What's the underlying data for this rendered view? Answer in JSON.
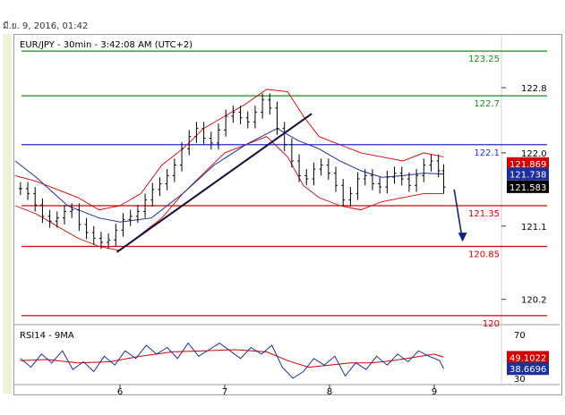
{
  "header": {
    "timestamp": "มี.ย. 9, 2016, 01:42"
  },
  "chart_data": [
    {
      "type": "line",
      "title": "EUR/JPY - 30min - 3:42:08 AM (UTC+2)",
      "instrument": "EUR/JPY",
      "y_axis": {
        "ticks": [
          122.8,
          122.0,
          121.1,
          120.2
        ],
        "tick_labels": [
          "122.8",
          "122.0",
          "121.1",
          "120.2"
        ],
        "range": [
          119.9,
          123.35
        ],
        "position": "right"
      },
      "x_axis": {
        "ticks": [
          6,
          7,
          8,
          9
        ],
        "tick_labels": [
          "6",
          "7",
          "8",
          "9"
        ]
      },
      "price_markers": [
        {
          "value": 121.869,
          "label": "121.869",
          "color": "#d40000"
        },
        {
          "value": 121.738,
          "label": "121.738",
          "color": "#1c2f9c"
        },
        {
          "value": 121.583,
          "label": "121.583",
          "color": "#000000"
        }
      ],
      "horizontal_levels": [
        {
          "value": 123.25,
          "label": "123.25",
          "color": "#1f8a1f"
        },
        {
          "value": 122.7,
          "label": "122.7",
          "color": "#1f8a1f"
        },
        {
          "value": 122.1,
          "label": "122.1",
          "color": "#1c2fcc"
        },
        {
          "value": 121.35,
          "label": "121.35",
          "color": "#d40000"
        },
        {
          "value": 120.85,
          "label": "120.85",
          "color": "#d40000"
        },
        {
          "value": 120.0,
          "label": "120",
          "color": "#d40000"
        }
      ],
      "trendline": {
        "x": [
          5.97,
          7.83
        ],
        "y": [
          120.78,
          122.48
        ],
        "color": "#10103a"
      },
      "forecast_arrow": {
        "x": [
          9.19,
          9.27
        ],
        "y": [
          121.55,
          120.92
        ],
        "color": "#10237a"
      },
      "price_series": {
        "x": [
          5.05,
          5.12,
          5.19,
          5.26,
          5.33,
          5.4,
          5.47,
          5.54,
          5.61,
          5.68,
          5.75,
          5.82,
          5.89,
          5.96,
          6.03,
          6.1,
          6.17,
          6.24,
          6.31,
          6.38,
          6.45,
          6.52,
          6.59,
          6.66,
          6.73,
          6.8,
          6.87,
          6.94,
          7.01,
          7.08,
          7.15,
          7.22,
          7.29,
          7.36,
          7.43,
          7.5,
          7.57,
          7.64,
          7.71,
          7.78,
          7.85,
          7.92,
          7.99,
          8.06,
          8.13,
          8.2,
          8.27,
          8.34,
          8.41,
          8.48,
          8.55,
          8.62,
          8.69,
          8.76,
          8.83,
          8.9,
          8.97,
          9.04,
          9.09
        ],
        "y": [
          121.56,
          121.5,
          121.36,
          121.22,
          121.16,
          121.2,
          121.28,
          121.3,
          121.12,
          121.02,
          120.95,
          120.9,
          120.93,
          121.05,
          121.18,
          121.22,
          121.28,
          121.42,
          121.55,
          121.62,
          121.72,
          121.85,
          122.05,
          122.2,
          122.3,
          122.18,
          122.12,
          122.28,
          122.45,
          122.5,
          122.43,
          122.38,
          122.5,
          122.65,
          122.55,
          122.3,
          122.1,
          121.9,
          121.72,
          121.68,
          121.8,
          121.85,
          121.75,
          121.6,
          121.42,
          121.5,
          121.68,
          121.72,
          121.62,
          121.58,
          121.7,
          121.75,
          121.68,
          121.6,
          121.72,
          121.85,
          121.9,
          121.78,
          121.58
        ],
        "color": "#000000"
      },
      "ma_series": {
        "x": [
          5.0,
          5.2,
          5.5,
          5.8,
          6.0,
          6.3,
          6.6,
          6.9,
          7.2,
          7.5,
          7.7,
          7.9,
          8.1,
          8.3,
          8.5,
          8.7,
          8.9,
          9.09
        ],
        "y": [
          121.9,
          121.7,
          121.35,
          121.2,
          121.15,
          121.2,
          121.5,
          121.85,
          122.1,
          122.3,
          122.15,
          122.05,
          121.9,
          121.78,
          121.7,
          121.72,
          121.75,
          121.74
        ],
        "color": "#1c2f9c"
      },
      "bollinger_upper": {
        "x": [
          5.0,
          5.2,
          5.4,
          5.6,
          5.8,
          6.0,
          6.2,
          6.4,
          6.6,
          6.8,
          7.0,
          7.2,
          7.4,
          7.6,
          7.75,
          7.9,
          8.1,
          8.3,
          8.5,
          8.7,
          8.9,
          9.09
        ],
        "y": [
          121.72,
          121.65,
          121.55,
          121.45,
          121.3,
          121.35,
          121.5,
          121.85,
          122.05,
          122.3,
          122.45,
          122.6,
          122.78,
          122.75,
          122.45,
          122.2,
          122.1,
          122.0,
          121.95,
          121.9,
          122.0,
          121.95
        ],
        "color": "#d40000"
      },
      "bollinger_lower": {
        "x": [
          5.0,
          5.2,
          5.4,
          5.6,
          5.8,
          6.0,
          6.2,
          6.4,
          6.6,
          6.8,
          7.0,
          7.2,
          7.4,
          7.6,
          7.75,
          7.9,
          8.1,
          8.3,
          8.5,
          8.7,
          8.9,
          9.09
        ],
        "y": [
          121.35,
          121.25,
          121.1,
          120.95,
          120.85,
          120.8,
          121.0,
          121.2,
          121.5,
          121.75,
          122.0,
          122.1,
          122.2,
          121.95,
          121.6,
          121.45,
          121.35,
          121.3,
          121.4,
          121.45,
          121.5,
          121.5
        ],
        "color": "#d40000"
      }
    },
    {
      "type": "line",
      "title": "RSI14 - 9MA",
      "y_axis": {
        "ticks": [
          70,
          30
        ],
        "tick_labels": [
          "70",
          "30"
        ],
        "range": [
          25,
          78
        ],
        "position": "right"
      },
      "price_markers": [
        {
          "value": 49.1022,
          "label": "49.1022",
          "color": "#d40000"
        },
        {
          "value": 38.6696,
          "label": "38.6696",
          "color": "#1c2f9c"
        }
      ],
      "rsi_series": {
        "x": [
          5.05,
          5.15,
          5.25,
          5.35,
          5.45,
          5.55,
          5.65,
          5.75,
          5.85,
          5.95,
          6.05,
          6.15,
          6.25,
          6.35,
          6.45,
          6.55,
          6.65,
          6.75,
          6.85,
          6.95,
          7.05,
          7.15,
          7.25,
          7.35,
          7.45,
          7.55,
          7.65,
          7.75,
          7.85,
          7.95,
          8.05,
          8.15,
          8.25,
          8.35,
          8.45,
          8.55,
          8.65,
          8.75,
          8.85,
          8.95,
          9.05,
          9.09
        ],
        "y": [
          48,
          40,
          52,
          44,
          55,
          38,
          45,
          36,
          50,
          42,
          55,
          48,
          60,
          52,
          58,
          48,
          62,
          50,
          56,
          62,
          55,
          48,
          58,
          52,
          60,
          40,
          30,
          36,
          48,
          42,
          50,
          32,
          44,
          38,
          50,
          42,
          52,
          45,
          55,
          50,
          46,
          38.7
        ],
        "color": "#1c2f9c"
      },
      "rsi_ma_series": {
        "x": [
          5.05,
          5.3,
          5.6,
          5.9,
          6.2,
          6.5,
          6.8,
          7.1,
          7.4,
          7.6,
          7.8,
          8.0,
          8.2,
          8.4,
          8.6,
          8.8,
          9.0,
          9.09
        ],
        "y": [
          46,
          47,
          44,
          45,
          50,
          54,
          55,
          56,
          54,
          46,
          40,
          42,
          44,
          44,
          46,
          49,
          52,
          49.1
        ],
        "color": "#d40000"
      }
    }
  ]
}
